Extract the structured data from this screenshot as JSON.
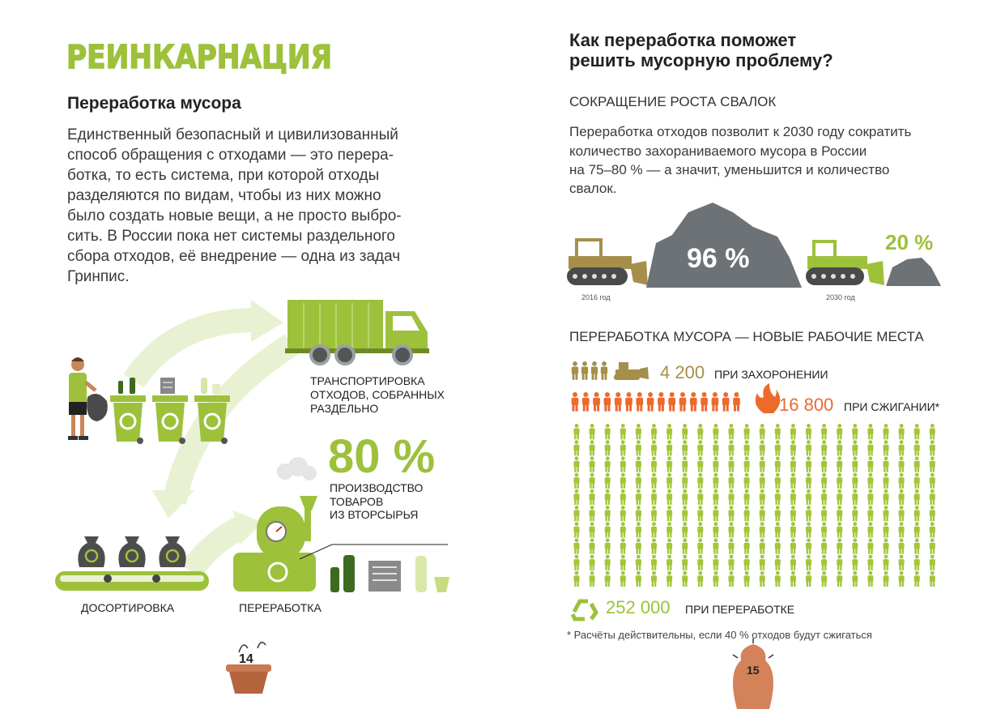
{
  "left_page": {
    "title": "РЕИНКАРНАЦИЯ",
    "heading": "Переработка мусора",
    "paragraph": [
      "Единственный безопасный и цивилизованный",
      "способ обращения с отходами — это перера-",
      "ботка, то есть система, при которой отходы",
      "разделяются по видам, чтобы из них можно",
      "было создать новые вещи, а не просто выбро-",
      "сить. В России пока нет системы раздельного",
      "сбора отходов, её внедрение — одна из задач",
      "Гринпис."
    ],
    "steps": {
      "transport": [
        "ТРАНСПОРТИРОВКА",
        "ОТХОДОВ, СОБРАННЫХ",
        "РАЗДЕЛЬНО"
      ],
      "production_share": "80 %",
      "production": [
        "ПРОИЗВОДСТВО",
        "ТОВАРОВ",
        "ИЗ ВТОРСЫРЬЯ"
      ],
      "sorting": "ДОСОРТИРОВКА",
      "processing": "ПЕРЕРАБОТКА"
    },
    "page_number": "14"
  },
  "right_page": {
    "heading": [
      "Как переработка поможет",
      "решить мусорную проблему?"
    ],
    "landfill": {
      "title": "СОКРАЩЕНИЕ РОСТА СВАЛОК",
      "paragraph": [
        "Переработка отходов позволит к 2030 году сократить",
        "количество захораниваемого мусора в России",
        "на 75–80 % — а значит, уменьшится и количество",
        "свалок."
      ],
      "share_2016": "96 %",
      "year_2016": "2016 год",
      "share_2030": "20 %",
      "year_2030": "2030 год"
    },
    "jobs": {
      "title": "ПЕРЕРАБОТКА МУСОРА — НОВЫЕ РАБОЧИЕ МЕСТА",
      "rows": [
        {
          "number": "4 200",
          "label": "ПРИ ЗАХОРОНЕНИИ"
        },
        {
          "number": "16 800",
          "label": "ПРИ СЖИГАНИИ*"
        },
        {
          "number": "252 000",
          "label": "ПРИ ПЕРЕРАБОТКЕ"
        }
      ]
    },
    "footnote": "* Расчёты действительны, если 40 % отходов будут сжигаться",
    "page_number": "15"
  }
}
